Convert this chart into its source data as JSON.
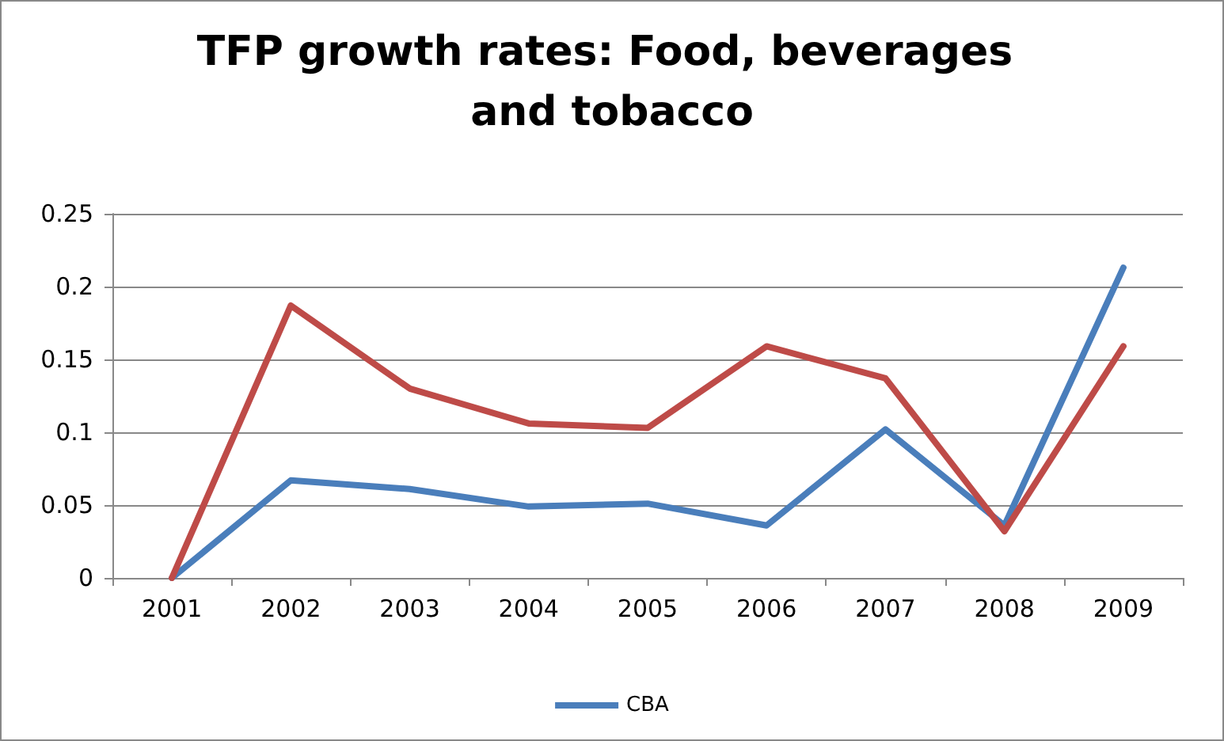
{
  "chart_data": {
    "type": "line",
    "title": "TFP growth rates: Food, beverages and tobacco",
    "categories": [
      "2001",
      "2002",
      "2003",
      "2004",
      "2005",
      "2006",
      "2007",
      "2008",
      "2009"
    ],
    "series": [
      {
        "name": "CBA",
        "color": "#4a7ebb",
        "values": [
          0,
          0.067,
          0.061,
          0.049,
          0.051,
          0.036,
          0.102,
          0.036,
          0.213
        ]
      },
      {
        "color": "#be4b48",
        "values": [
          0,
          0.187,
          0.13,
          0.106,
          0.103,
          0.159,
          0.137,
          0.032,
          0.159
        ]
      }
    ],
    "ylim": [
      0,
      0.25
    ],
    "yticks": [
      0,
      0.05,
      0.1,
      0.15,
      0.2,
      0.25
    ],
    "grid": "y",
    "legend": "bottom",
    "marker": "none",
    "line_style": "solid"
  }
}
